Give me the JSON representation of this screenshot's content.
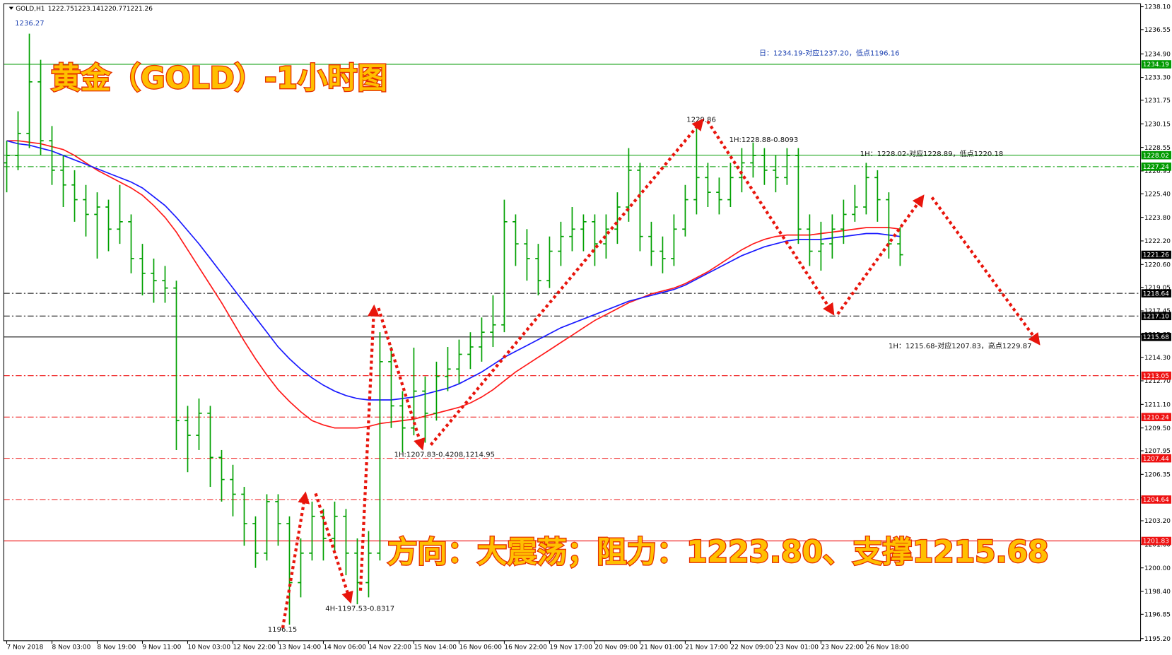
{
  "chart_data": {
    "type": "ohlc",
    "symbol": "GOLD,H1",
    "header_values": [
      1222.75,
      1223.14,
      1220.77,
      1221.26
    ],
    "title": "黄金（GOLD）-1小时图",
    "subtitle": "方向：大震荡；阻力：1223.80、支撑1215.68",
    "notes": [
      "1236.27",
      "日：1234.19-对应1237.20，低点1196.16",
      "1229.86",
      "1H:1228.88-0.8093",
      "1H：1228.02-对应1228.89，低点1220.18",
      "1H：1215.68-对应1207.83，高点1229.87",
      "1H:1207.83-0.4208,1214.95",
      "4H-1197.53-0.8317",
      "1196.15"
    ],
    "color": "#00a000",
    "categories": [
      "7 Nov 2018",
      null,
      null,
      null,
      "8 Nov 03:00",
      null,
      null,
      null,
      "8 Nov 19:00",
      null,
      null,
      null,
      "9 Nov 11:00",
      null,
      null,
      null,
      "10 Nov 03:00",
      null,
      null,
      null,
      "12 Nov 22:00",
      null,
      null,
      null,
      "13 Nov 14:00",
      null,
      null,
      null,
      "14 Nov 06:00",
      null,
      null,
      null,
      "14 Nov 22:00",
      null,
      null,
      null,
      "15 Nov 14:00",
      null,
      null,
      null,
      "16 Nov 06:00",
      null,
      null,
      null,
      "16 Nov 22:00",
      null,
      null,
      null,
      "19 Nov 17:00",
      null,
      null,
      null,
      "20 Nov 09:00",
      null,
      null,
      null,
      "21 Nov 01:00",
      null,
      null,
      null,
      "21 Nov 17:00",
      null,
      null,
      null,
      "22 Nov 09:00",
      null,
      null,
      null,
      "23 Nov 01:00",
      null,
      null,
      null,
      "23 Nov 22:00",
      null,
      null,
      null,
      "26 Nov 18:00",
      null,
      null,
      null
    ],
    "open": [
      1227.5,
      1228.0,
      1229.5,
      1233.0,
      1229.0,
      1227.0,
      1226.0,
      1225.0,
      1224.0,
      1224.5,
      1223.0,
      1223.5,
      1221.0,
      1220.0,
      1219.5,
      1219.0,
      1210.0,
      1209.0,
      1210.5,
      1207.5,
      1206.0,
      1205.0,
      1203.0,
      1201.0,
      1204.5,
      1203.0,
      1199.0,
      1201.0,
      1203.5,
      1202.0,
      1203.5,
      1201.0,
      1199.0,
      1201.0,
      1214.0,
      1211.0,
      1209.5,
      1212.0,
      1210.5,
      1213.0,
      1213.5,
      1214.5,
      1215.0,
      1216.0,
      1216.5,
      1223.5,
      1222.0,
      1221.0,
      1219.5,
      1221.5,
      1222.5,
      1223.0,
      1223.5,
      1222.0,
      1223.0,
      1224.5,
      1227.0,
      1222.5,
      1221.5,
      1221.0,
      1223.0,
      1225.0,
      1226.5,
      1225.5,
      1225.0,
      1226.5,
      1227.5,
      1228.0,
      1227.0,
      1226.5,
      1228.0,
      1223.0,
      1221.5,
      1222.0,
      1223.0,
      1224.0,
      1224.5,
      1226.5,
      1225.0,
      1222.0
    ],
    "high": [
      1229.0,
      1231.0,
      1236.27,
      1234.5,
      1230.0,
      1228.0,
      1227.0,
      1226.0,
      1225.5,
      1225.0,
      1226.0,
      1224.0,
      1222.0,
      1221.0,
      1220.5,
      1219.5,
      1211.0,
      1211.5,
      1211.0,
      1208.0,
      1207.0,
      1205.5,
      1203.5,
      1205.0,
      1205.0,
      1203.5,
      1202.0,
      1204.5,
      1204.0,
      1204.5,
      1204.0,
      1202.0,
      1202.5,
      1216.0,
      1215.0,
      1212.0,
      1214.95,
      1213.0,
      1214.0,
      1215.0,
      1215.5,
      1216.0,
      1217.0,
      1218.5,
      1225.0,
      1224.0,
      1223.0,
      1222.0,
      1222.5,
      1223.5,
      1224.5,
      1224.0,
      1224.0,
      1224.0,
      1225.5,
      1228.5,
      1227.5,
      1223.5,
      1222.5,
      1224.0,
      1226.0,
      1229.86,
      1227.5,
      1226.5,
      1227.5,
      1228.5,
      1228.88,
      1228.5,
      1228.0,
      1228.5,
      1228.5,
      1224.0,
      1223.5,
      1224.0,
      1225.0,
      1226.0,
      1227.5,
      1227.0,
      1225.5,
      1223.14
    ],
    "low": [
      1225.5,
      1227.0,
      1228.5,
      1228.0,
      1226.0,
      1224.5,
      1223.5,
      1222.5,
      1221.0,
      1221.5,
      1222.0,
      1220.0,
      1218.5,
      1218.0,
      1218.0,
      1208.0,
      1206.5,
      1208.0,
      1205.5,
      1204.5,
      1203.5,
      1201.5,
      1200.0,
      1200.5,
      1201.5,
      1196.15,
      1198.0,
      1200.5,
      1200.5,
      1201.0,
      1199.5,
      1197.53,
      1198.0,
      1200.5,
      1209.5,
      1207.83,
      1209.0,
      1208.5,
      1210.0,
      1212.0,
      1212.5,
      1213.5,
      1214.0,
      1215.0,
      1216.0,
      1220.5,
      1219.5,
      1218.5,
      1219.0,
      1220.5,
      1221.5,
      1221.5,
      1220.5,
      1221.0,
      1222.0,
      1223.5,
      1221.5,
      1220.5,
      1220.0,
      1220.5,
      1222.5,
      1224.0,
      1224.5,
      1224.0,
      1224.5,
      1225.5,
      1226.5,
      1226.0,
      1225.5,
      1226.0,
      1222.0,
      1220.5,
      1220.18,
      1221.0,
      1222.0,
      1223.5,
      1224.0,
      1223.5,
      1221.0,
      1220.5
    ],
    "close": [
      1228.0,
      1229.5,
      1233.0,
      1229.0,
      1227.0,
      1226.0,
      1225.0,
      1224.0,
      1224.5,
      1223.0,
      1223.5,
      1221.0,
      1220.0,
      1219.5,
      1219.0,
      1210.0,
      1209.0,
      1210.5,
      1207.5,
      1206.0,
      1205.0,
      1203.0,
      1201.0,
      1204.5,
      1203.0,
      1199.0,
      1201.0,
      1203.5,
      1202.0,
      1203.5,
      1201.0,
      1199.0,
      1201.0,
      1214.0,
      1211.0,
      1209.5,
      1212.0,
      1210.5,
      1213.0,
      1213.5,
      1214.5,
      1215.0,
      1216.0,
      1216.5,
      1223.5,
      1222.0,
      1221.0,
      1219.5,
      1221.5,
      1222.5,
      1223.0,
      1223.5,
      1222.0,
      1223.0,
      1224.5,
      1227.0,
      1222.5,
      1221.5,
      1221.0,
      1223.0,
      1225.0,
      1226.5,
      1225.5,
      1225.0,
      1226.5,
      1227.5,
      1228.0,
      1227.0,
      1226.5,
      1228.0,
      1223.0,
      1221.5,
      1222.0,
      1223.0,
      1224.0,
      1224.5,
      1226.5,
      1225.0,
      1222.0,
      1221.26
    ],
    "moving_averages": [
      {
        "color": "#ff1a1a",
        "values": [
          1229.0,
          1229.0,
          1228.9,
          1228.8,
          1228.6,
          1228.4,
          1228.0,
          1227.5,
          1227.0,
          1226.6,
          1226.2,
          1225.8,
          1225.3,
          1224.6,
          1223.8,
          1222.8,
          1221.6,
          1220.4,
          1219.2,
          1218.0,
          1216.7,
          1215.4,
          1214.2,
          1213.1,
          1212.1,
          1211.3,
          1210.6,
          1210.0,
          1209.7,
          1209.5,
          1209.5,
          1209.5,
          1209.6,
          1209.8,
          1209.9,
          1210.0,
          1210.1,
          1210.3,
          1210.5,
          1210.7,
          1210.9,
          1211.2,
          1211.6,
          1212.1,
          1212.7,
          1213.3,
          1213.8,
          1214.3,
          1214.8,
          1215.3,
          1215.8,
          1216.3,
          1216.8,
          1217.2,
          1217.6,
          1218.0,
          1218.3,
          1218.6,
          1218.8,
          1219.0,
          1219.3,
          1219.7,
          1220.1,
          1220.6,
          1221.1,
          1221.6,
          1222.0,
          1222.3,
          1222.5,
          1222.6,
          1222.6,
          1222.6,
          1222.7,
          1222.8,
          1222.9,
          1223.0,
          1223.1,
          1223.1,
          1223.1,
          1223.0
        ]
      },
      {
        "color": "#1a1aff",
        "values": [
          1229.0,
          1228.8,
          1228.7,
          1228.5,
          1228.3,
          1228.0,
          1227.7,
          1227.4,
          1227.1,
          1226.8,
          1226.5,
          1226.2,
          1225.8,
          1225.2,
          1224.6,
          1223.8,
          1222.9,
          1222.0,
          1221.0,
          1220.0,
          1219.0,
          1218.0,
          1217.0,
          1216.0,
          1215.0,
          1214.2,
          1213.5,
          1212.9,
          1212.4,
          1212.0,
          1211.7,
          1211.5,
          1211.4,
          1211.4,
          1211.4,
          1211.5,
          1211.6,
          1211.8,
          1212.0,
          1212.2,
          1212.5,
          1212.9,
          1213.3,
          1213.8,
          1214.3,
          1214.7,
          1215.1,
          1215.5,
          1215.9,
          1216.3,
          1216.6,
          1216.9,
          1217.2,
          1217.5,
          1217.8,
          1218.1,
          1218.3,
          1218.5,
          1218.7,
          1218.9,
          1219.2,
          1219.6,
          1220.0,
          1220.4,
          1220.8,
          1221.2,
          1221.5,
          1221.8,
          1222.0,
          1222.2,
          1222.3,
          1222.3,
          1222.3,
          1222.4,
          1222.5,
          1222.6,
          1222.7,
          1222.7,
          1222.6,
          1222.5
        ]
      }
    ],
    "levels": [
      {
        "value": 1234.19,
        "color": "#009a00",
        "style": "solid"
      },
      {
        "value": 1228.02,
        "color": "#009a00",
        "style": "solid"
      },
      {
        "value": 1227.24,
        "color": "#009a00",
        "style": "dashdot"
      },
      {
        "value": 1218.64,
        "color": "#000000",
        "style": "dashdot"
      },
      {
        "value": 1217.1,
        "label": "1217.10",
        "color": "#000000",
        "style": "dashdot"
      },
      {
        "value": 1215.68,
        "color": "#000000",
        "style": "solid"
      },
      {
        "value": 1213.05,
        "color": "#ee1111",
        "style": "dashdot"
      },
      {
        "value": 1210.24,
        "color": "#ee1111",
        "style": "dashdot"
      },
      {
        "value": 1207.44,
        "color": "#ee1111",
        "style": "dashdot"
      },
      {
        "value": 1204.64,
        "color": "#ee1111",
        "style": "dashdot"
      },
      {
        "value": 1201.83,
        "color": "#ee1111",
        "style": "solid"
      }
    ],
    "ylim": [
      1194.9,
      1238.3
    ],
    "yticks": [
      {
        "value": 1238.1,
        "label": "1238.10"
      },
      1236.55,
      {
        "value": 1234.9,
        "label": "1234.90"
      },
      {
        "value": 1233.3,
        "label": "1233.30"
      },
      1231.75,
      1230.15,
      1228.55,
      1226.95,
      {
        "value": 1225.4,
        "label": "1225.40"
      },
      {
        "value": 1223.8,
        "label": "1223.80"
      },
      {
        "value": 1222.2,
        "label": "1222.20"
      },
      {
        "value": 1220.6,
        "label": "1220.60"
      },
      1219.05,
      1217.45,
      1215.85,
      {
        "value": 1214.3,
        "label": "1214.30"
      },
      {
        "value": 1212.7,
        "label": "1212.70"
      },
      {
        "value": 1211.1,
        "label": "1211.10"
      },
      {
        "value": 1209.5,
        "label": "1209.50"
      },
      1207.95,
      1206.35,
      1204.75,
      {
        "value": 1203.2,
        "label": "1203.20"
      },
      {
        "value": 1201.6,
        "label": "1201.60"
      },
      {
        "value": 1200,
        "label": "1200.00"
      },
      {
        "value": 1198.4,
        "label": "1198.40"
      },
      1196.85,
      {
        "value": 1195.2,
        "label": "1195.20"
      }
    ]
  }
}
